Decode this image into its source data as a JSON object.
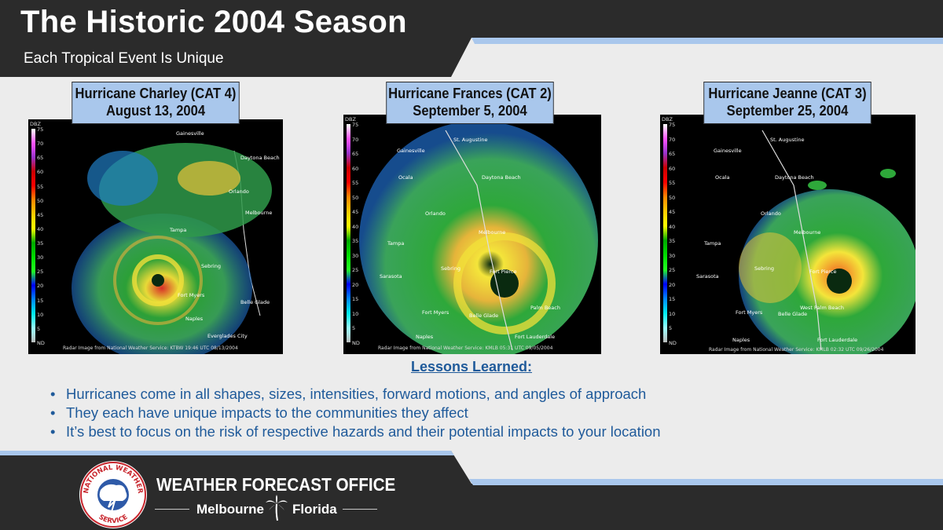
{
  "header": {
    "title": "The Historic 2004 Season",
    "subtitle": "Each Tropical Event Is Unique",
    "colors": {
      "dark": "#2b2b2b",
      "accent": "#a9c7ec"
    }
  },
  "panels": [
    {
      "name": "charley",
      "label_line1": "Hurricane Charley (CAT 4)",
      "label_line2": "August 13, 2004",
      "caption": "Radar Image from National Weather Service: KTBW  19:46 UTC 08/13/2004",
      "cities": [
        "Gainesville",
        "Daytona Beach",
        "Orlando",
        "Melbourne",
        "Tampa",
        "Sebring",
        "Fort Myers",
        "Belle Glade",
        "Naples",
        "Everglades City"
      ]
    },
    {
      "name": "frances",
      "label_line1": "Hurricane Frances (CAT 2)",
      "label_line2": "September 5, 2004",
      "caption": "Radar Image from National Weather Service: KMLB  05:31 UTC 09/05/2004",
      "cities": [
        "St. Augustine",
        "Gainesville",
        "Ocala",
        "Daytona Beach",
        "Orlando",
        "Melbourne",
        "Tampa",
        "Sarasota",
        "Sebring",
        "Fort Pierce",
        "Fort Myers",
        "Belle Glade",
        "Palm Beach",
        "Naples",
        "Fort Lauderdale"
      ]
    },
    {
      "name": "jeanne",
      "label_line1": "Hurricane Jeanne (CAT 3)",
      "label_line2": "September 25, 2004",
      "caption": "Radar Image from National Weather Service: KMLB  02:32 UTC 09/26/2004",
      "cities": [
        "St. Augustine",
        "Gainesville",
        "Ocala",
        "Daytona Beach",
        "Orlando",
        "Melbourne",
        "Tampa",
        "Sarasota",
        "Sebring",
        "Fort Pierce",
        "Fort Myers",
        "Belle Glade",
        "West Palm Beach",
        "Naples",
        "Fort Lauderdale"
      ]
    }
  ],
  "radar_scale": {
    "unit": "DBZ",
    "ticks": [
      "75",
      "70",
      "65",
      "60",
      "55",
      "50",
      "45",
      "40",
      "35",
      "30",
      "25",
      "20",
      "15",
      "10",
      "5",
      "ND"
    ]
  },
  "lessons": {
    "title": "Lessons Learned:",
    "items": [
      "Hurricanes come in all shapes, sizes, intensities, forward motions, and angles of approach",
      "They each have unique impacts to the communities they affect",
      "It’s best to focus on the risk of respective hazards and their potential impacts to your location"
    ]
  },
  "footer": {
    "office": "WEATHER FORECAST OFFICE",
    "city": "Melbourne",
    "state": "Florida",
    "logo_text": "NATIONAL WEATHER SERVICE"
  }
}
